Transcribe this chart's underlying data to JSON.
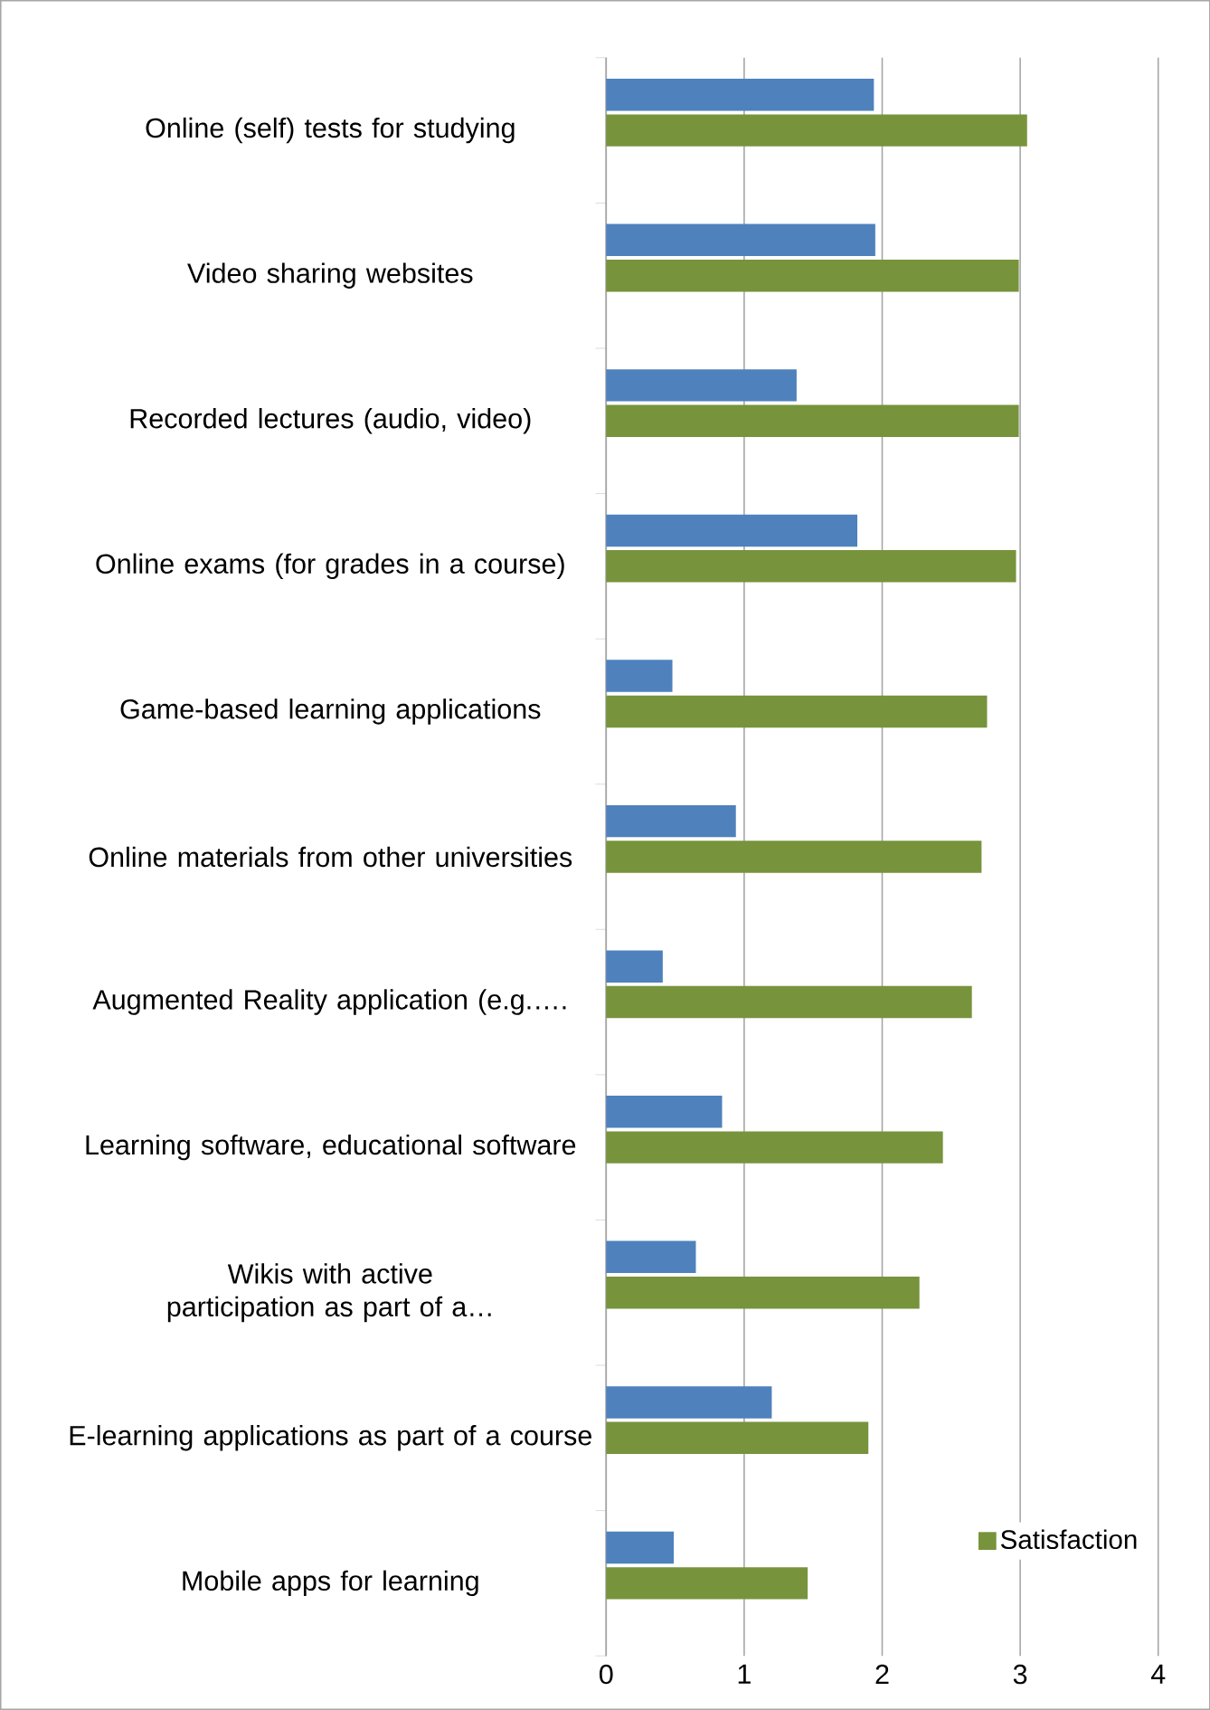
{
  "chart_data": {
    "type": "bar",
    "orientation": "horizontal",
    "categories": [
      "Online (self) tests for studying",
      "Video sharing websites",
      "Recorded lectures (audio, video)",
      "Online exams (for grades in a course)",
      "Game-based learning applications",
      "Online materials from other universities",
      "Augmented Reality application (e.g.….",
      "Learning software, educational software",
      "Wikis with active participation as part of a…",
      "E-learning applications as part of a course",
      "Mobile apps for learning"
    ],
    "series": [
      {
        "name": "Satisfaction",
        "color": "#77933c",
        "values": [
          3.05,
          2.99,
          2.99,
          2.97,
          2.76,
          2.72,
          2.65,
          2.44,
          2.27,
          1.9,
          1.46
        ]
      },
      {
        "color": "#4f81bd",
        "values": [
          1.94,
          1.95,
          1.38,
          1.82,
          0.48,
          0.94,
          0.41,
          0.84,
          0.65,
          1.2,
          0.49
        ]
      }
    ],
    "xlim": [
      0,
      4
    ],
    "xticks": [
      0,
      1,
      2,
      3,
      4
    ],
    "grid": "x",
    "legend": "right"
  }
}
